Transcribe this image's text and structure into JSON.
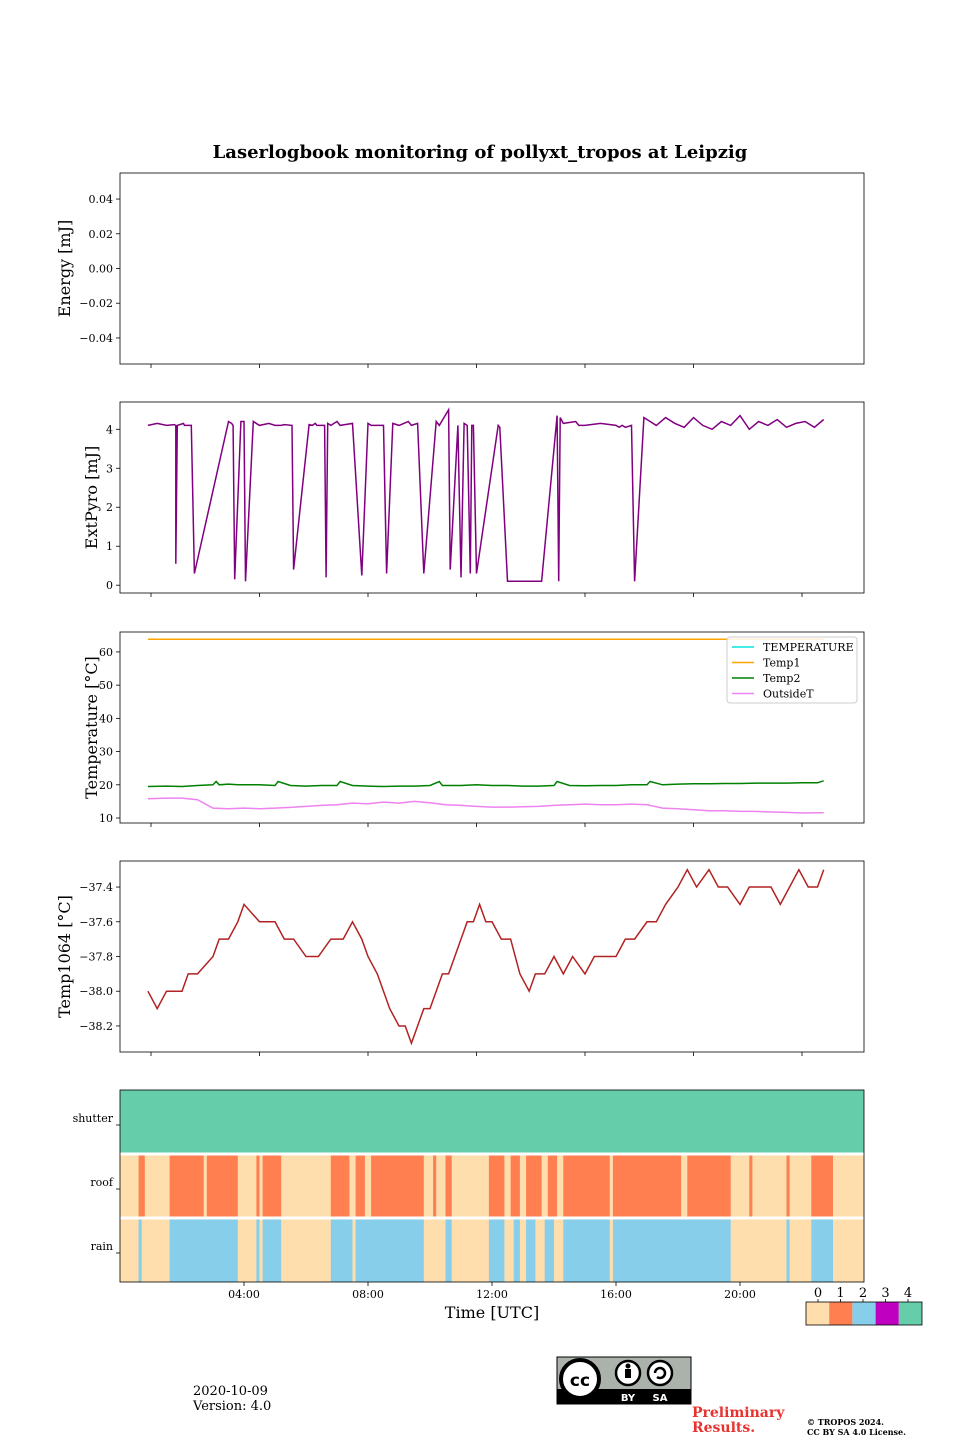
{
  "chart_data": [
    {
      "id": "energy",
      "type": "line",
      "title": "Laserlogbook monitoring of pollyxt_tropos at Leipzig",
      "ylabel": "Energy [mJ]",
      "ylim": [
        -0.055,
        0.055
      ],
      "yticks": [
        0.04,
        0.02,
        0.0,
        -0.02,
        -0.04
      ],
      "ytick_labels": [
        "0.04",
        "0.02",
        "0.00",
        "−0.02",
        "−0.04"
      ],
      "series": []
    },
    {
      "id": "extpyro",
      "type": "line",
      "ylabel": "ExtPyro [mJ]",
      "ylim": [
        -0.2,
        4.7
      ],
      "yticks": [
        0,
        1,
        2,
        3,
        4
      ],
      "ytick_labels": [
        "0",
        "1",
        "2",
        "3",
        "4"
      ],
      "series": [
        {
          "name": "ExtPyro",
          "color": "#800080",
          "x": [
            0.9,
            1.2,
            1.5,
            1.75,
            1.8,
            1.8,
            1.85,
            2.05,
            2.08,
            2.3,
            2.4,
            3.5,
            3.6,
            3.65,
            3.7,
            3.9,
            4.0,
            4.05,
            4.3,
            4.5,
            4.8,
            5.0,
            5.2,
            5.3,
            5.55,
            5.6,
            6.1,
            6.2,
            6.3,
            6.35,
            6.6,
            6.65,
            6.7,
            6.8,
            7.0,
            7.1,
            7.5,
            7.8,
            8.0,
            8.1,
            8.5,
            8.6,
            8.8,
            9.0,
            9.3,
            9.4,
            9.6,
            9.8,
            10.2,
            10.3,
            10.6,
            10.65,
            10.9,
            11.0,
            11.1,
            11.2,
            11.3,
            11.35,
            11.4,
            11.5,
            12.2,
            12.25,
            12.5,
            13.6,
            14.1,
            14.15,
            14.2,
            14.3,
            14.7,
            14.8,
            15.0,
            15.5,
            16.0,
            16.1,
            16.2,
            16.3,
            16.5,
            16.6,
            16.9,
            17.0,
            17.3,
            17.6,
            17.9,
            18.2,
            18.5,
            18.8,
            19.1,
            19.4,
            19.7,
            20.0,
            20.3,
            20.6,
            20.9,
            21.2,
            21.5,
            21.8,
            22.1,
            22.4,
            22.7
          ],
          "y": [
            4.1,
            4.15,
            4.1,
            4.12,
            4.1,
            0.55,
            4.1,
            4.15,
            4.1,
            4.1,
            0.3,
            4.2,
            4.15,
            4.1,
            0.15,
            4.2,
            4.2,
            0.1,
            4.2,
            4.1,
            4.15,
            4.1,
            4.1,
            4.12,
            4.1,
            0.4,
            4.12,
            4.1,
            4.15,
            4.1,
            4.1,
            0.2,
            4.15,
            4.1,
            4.2,
            4.1,
            4.15,
            0.25,
            4.15,
            4.1,
            4.1,
            0.3,
            4.15,
            4.1,
            4.2,
            4.1,
            4.15,
            0.3,
            4.2,
            4.1,
            4.5,
            0.4,
            4.1,
            0.2,
            4.15,
            4.1,
            0.3,
            4.1,
            4.1,
            0.3,
            4.1,
            4.05,
            0.1,
            0.1,
            4.35,
            0.1,
            4.3,
            4.15,
            4.2,
            4.1,
            4.1,
            4.15,
            4.1,
            4.05,
            4.1,
            4.05,
            4.1,
            0.1,
            4.3,
            4.25,
            4.1,
            4.3,
            4.15,
            4.05,
            4.3,
            4.1,
            4.0,
            4.2,
            4.1,
            4.35,
            4.0,
            4.2,
            4.1,
            4.25,
            4.05,
            4.15,
            4.2,
            4.05,
            4.25
          ]
        }
      ]
    },
    {
      "id": "temperature",
      "type": "line",
      "ylabel": "Temperature [°C]",
      "ylim": [
        8.5,
        66
      ],
      "yticks": [
        10,
        20,
        30,
        40,
        50,
        60
      ],
      "ytick_labels": [
        "10",
        "20",
        "30",
        "40",
        "50",
        "60"
      ],
      "legend": "top-right",
      "series": [
        {
          "name": "TEMPERATURE",
          "color": "#00e5e5",
          "x": [],
          "y": []
        },
        {
          "name": "Temp1",
          "color": "#ffa500",
          "x": [
            0.9,
            22.7
          ],
          "y": [
            63.8,
            63.8
          ]
        },
        {
          "name": "Temp2",
          "color": "#008000",
          "x": [
            0.9,
            1.5,
            2.0,
            2.5,
            3.0,
            3.1,
            3.2,
            3.5,
            3.8,
            4.0,
            4.5,
            5.0,
            5.1,
            5.5,
            6.0,
            6.5,
            7.0,
            7.1,
            7.5,
            8.0,
            8.5,
            9.0,
            9.5,
            10.0,
            10.3,
            10.4,
            10.5,
            11.0,
            11.5,
            12.0,
            12.5,
            13.0,
            13.5,
            14.0,
            14.1,
            14.5,
            15.0,
            15.5,
            16.0,
            16.5,
            17.0,
            17.1,
            17.5,
            18.0,
            18.5,
            19.0,
            19.5,
            20.0,
            20.5,
            21.0,
            21.5,
            22.0,
            22.5,
            22.7
          ],
          "y": [
            19.5,
            19.6,
            19.5,
            19.8,
            20.0,
            21.0,
            20.0,
            20.2,
            20.0,
            20.0,
            20.0,
            19.8,
            21.0,
            19.8,
            19.6,
            19.8,
            19.8,
            21.0,
            19.8,
            19.6,
            19.5,
            19.6,
            19.6,
            19.8,
            21.0,
            19.8,
            19.8,
            19.8,
            20.0,
            19.8,
            19.8,
            19.6,
            19.6,
            19.8,
            21.0,
            19.8,
            19.7,
            19.8,
            19.8,
            20.0,
            20.0,
            21.0,
            20.0,
            20.2,
            20.3,
            20.3,
            20.4,
            20.4,
            20.5,
            20.5,
            20.5,
            20.6,
            20.6,
            21.2
          ]
        },
        {
          "name": "OutsideT",
          "color": "#ee82ee",
          "x": [
            0.9,
            1.5,
            2.0,
            2.5,
            3.0,
            3.5,
            4.0,
            4.5,
            5.0,
            5.5,
            6.0,
            6.5,
            7.0,
            7.5,
            8.0,
            8.5,
            9.0,
            9.5,
            10.0,
            10.5,
            11.0,
            11.5,
            12.0,
            12.5,
            13.0,
            13.5,
            14.0,
            14.5,
            15.0,
            15.5,
            16.0,
            16.5,
            17.0,
            17.5,
            18.0,
            18.5,
            19.0,
            19.5,
            20.0,
            20.5,
            21.0,
            21.5,
            22.0,
            22.5,
            22.7
          ],
          "y": [
            15.8,
            16.0,
            16.0,
            15.5,
            13.0,
            12.8,
            13.0,
            12.8,
            13.0,
            13.2,
            13.5,
            13.8,
            14.0,
            14.5,
            14.3,
            14.8,
            14.5,
            15.0,
            14.6,
            14.0,
            13.8,
            13.5,
            13.3,
            13.3,
            13.4,
            13.5,
            13.8,
            14.0,
            14.2,
            14.0,
            14.0,
            14.2,
            14.0,
            13.0,
            12.8,
            12.5,
            12.2,
            12.2,
            12.0,
            12.0,
            11.8,
            11.7,
            11.5,
            11.6,
            11.6
          ]
        }
      ]
    },
    {
      "id": "temp1064",
      "type": "line",
      "ylabel": "Temp1064 [°C]",
      "ylim": [
        -38.35,
        -37.25
      ],
      "yticks": [
        -37.4,
        -37.6,
        -37.8,
        -38.0,
        -38.2
      ],
      "ytick_labels": [
        "−37.4",
        "−37.6",
        "−37.8",
        "−38.0",
        "−38.2"
      ],
      "series": [
        {
          "name": "Temp1064",
          "color": "#b22222",
          "x": [
            0.9,
            1.2,
            1.5,
            2.0,
            2.2,
            2.5,
            3.0,
            3.2,
            3.5,
            3.8,
            4.0,
            4.5,
            5.0,
            5.3,
            5.6,
            6.0,
            6.4,
            6.8,
            7.2,
            7.5,
            7.8,
            8.0,
            8.3,
            8.5,
            8.7,
            9.0,
            9.2,
            9.4,
            9.6,
            9.8,
            10.0,
            10.2,
            10.4,
            10.6,
            10.8,
            11.0,
            11.2,
            11.4,
            11.6,
            11.8,
            12.0,
            12.3,
            12.6,
            12.9,
            13.2,
            13.4,
            13.7,
            14.0,
            14.3,
            14.6,
            15.0,
            15.3,
            15.6,
            16.0,
            16.3,
            16.6,
            17.0,
            17.3,
            17.6,
            18.0,
            18.3,
            18.6,
            19.0,
            19.3,
            19.6,
            20.0,
            20.3,
            20.6,
            21.0,
            21.3,
            21.6,
            21.9,
            22.2,
            22.5,
            22.7
          ],
          "y": [
            -38.0,
            -38.1,
            -38.0,
            -38.0,
            -37.9,
            -37.9,
            -37.8,
            -37.7,
            -37.7,
            -37.6,
            -37.5,
            -37.6,
            -37.6,
            -37.7,
            -37.7,
            -37.8,
            -37.8,
            -37.7,
            -37.7,
            -37.6,
            -37.7,
            -37.8,
            -37.9,
            -38.0,
            -38.1,
            -38.2,
            -38.2,
            -38.3,
            -38.2,
            -38.1,
            -38.1,
            -38.0,
            -37.9,
            -37.9,
            -37.8,
            -37.7,
            -37.6,
            -37.6,
            -37.5,
            -37.6,
            -37.6,
            -37.7,
            -37.7,
            -37.9,
            -38.0,
            -37.9,
            -37.9,
            -37.8,
            -37.9,
            -37.8,
            -37.9,
            -37.8,
            -37.8,
            -37.8,
            -37.7,
            -37.7,
            -37.6,
            -37.6,
            -37.5,
            -37.4,
            -37.3,
            -37.4,
            -37.3,
            -37.4,
            -37.4,
            -37.5,
            -37.4,
            -37.4,
            -37.4,
            -37.5,
            -37.4,
            -37.3,
            -37.4,
            -37.4,
            -37.3
          ]
        }
      ]
    },
    {
      "id": "status",
      "type": "heatmap",
      "rows": [
        "shutter",
        "roof",
        "rain"
      ],
      "xlabel": "Time [UTC]",
      "xlim": [
        0,
        24
      ],
      "xticks": [
        4,
        8,
        12,
        16,
        20
      ],
      "xtick_labels": [
        "04:00",
        "08:00",
        "12:00",
        "16:00",
        "20:00"
      ],
      "colorbar": {
        "ticks": [
          "0",
          "1",
          "2",
          "3",
          "4"
        ],
        "colors": [
          "#ffdead",
          "#ff7f50",
          "#87ceeb",
          "#c000c0",
          "#66cdaa"
        ]
      },
      "shutter": [
        {
          "start": 0,
          "end": 24,
          "value": 4
        }
      ],
      "roof_closed": [
        [
          0.6,
          0.8
        ],
        [
          1.6,
          2.7
        ],
        [
          2.8,
          3.0
        ],
        [
          3.0,
          3.8
        ],
        [
          4.4,
          4.5
        ],
        [
          4.6,
          5.2
        ],
        [
          6.8,
          7.4
        ],
        [
          7.6,
          7.9
        ],
        [
          8.1,
          9.8
        ],
        [
          10.1,
          10.2
        ],
        [
          10.5,
          10.7
        ],
        [
          11.9,
          12.4
        ],
        [
          12.6,
          12.9
        ],
        [
          13.1,
          13.6
        ],
        [
          13.8,
          14.1
        ],
        [
          14.3,
          15.8
        ],
        [
          15.9,
          18.1
        ],
        [
          18.3,
          19.7
        ],
        [
          20.3,
          20.4
        ],
        [
          21.5,
          21.6
        ],
        [
          22.3,
          23.0
        ]
      ],
      "rain_detected": [
        [
          0.6,
          0.7
        ],
        [
          1.6,
          3.8
        ],
        [
          4.4,
          4.5
        ],
        [
          4.6,
          5.2
        ],
        [
          6.8,
          7.5
        ],
        [
          7.6,
          9.8
        ],
        [
          10.5,
          10.7
        ],
        [
          11.9,
          12.4
        ],
        [
          12.7,
          12.9
        ],
        [
          13.1,
          13.4
        ],
        [
          13.7,
          14.0
        ],
        [
          14.3,
          15.8
        ],
        [
          15.9,
          19.7
        ],
        [
          21.5,
          21.6
        ],
        [
          22.3,
          23.0
        ]
      ]
    }
  ],
  "footer": {
    "date": "2020-10-09",
    "version": "Version: 4.0",
    "preliminary_line1": "Preliminary",
    "preliminary_line2": "Results.",
    "copyright_line1": "© TROPOS 2024.",
    "copyright_line2": "CC BY SA 4.0 License.",
    "cc_text": "cc",
    "by_text": "BY",
    "sa_text": "SA"
  }
}
